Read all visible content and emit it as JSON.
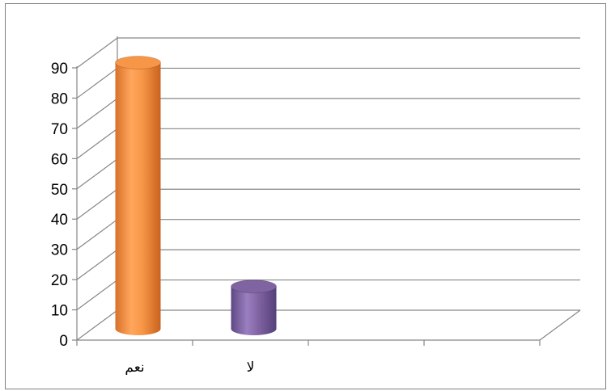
{
  "chart_data": {
    "type": "bar",
    "style": "3d-cylinder",
    "categories": [
      "نعم",
      "لا"
    ],
    "values": [
      88,
      14
    ],
    "colors": [
      "#F79646",
      "#8064A2"
    ],
    "ylim": [
      0,
      90
    ],
    "ytick_step": 10,
    "grid": true,
    "legend": "none"
  }
}
